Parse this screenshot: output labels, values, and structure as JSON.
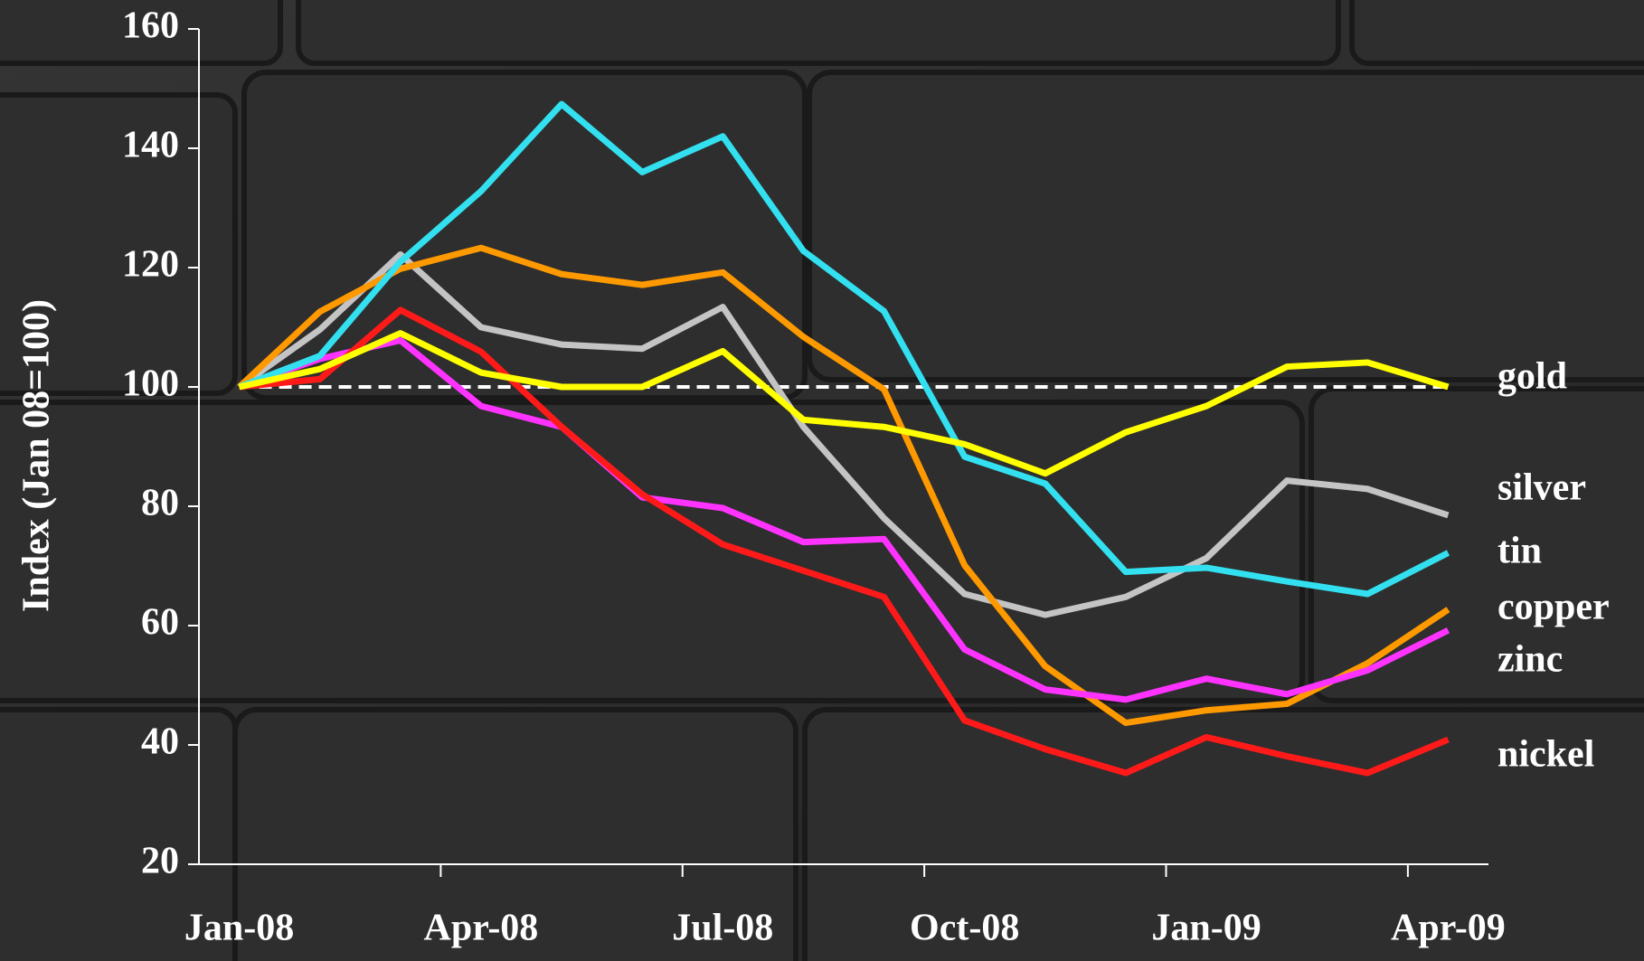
{
  "chart_data": {
    "type": "line",
    "ylabel": "Index (Jan 08=100)",
    "categories": [
      "Jan-08",
      null,
      null,
      "Apr-08",
      null,
      null,
      "Jul-08",
      null,
      null,
      "Oct-08",
      null,
      null,
      "Jan-09",
      null,
      null,
      "Apr-09"
    ],
    "ylim": [
      20,
      160
    ],
    "yticks": [
      20,
      40,
      60,
      80,
      100,
      120,
      140,
      160
    ],
    "reference_line": 100,
    "series": [
      {
        "name": "gold",
        "color": "#ffff00",
        "values": [
          100,
          103,
          109,
          102.4,
          100,
          100,
          106,
          94.5,
          93.3,
          90.4,
          85.5,
          92.4,
          96.8,
          103.4,
          104.1,
          100
        ]
      },
      {
        "name": "silver",
        "color": "#c4c4c4",
        "values": [
          100,
          109.6,
          122.2,
          110,
          107.1,
          106.4,
          113.4,
          93.3,
          78,
          65.3,
          61.8,
          64.8,
          71.3,
          84.3,
          82.9,
          78.5
        ]
      },
      {
        "name": "tin",
        "color": "#33e0f0",
        "values": [
          100,
          105.2,
          121,
          132.8,
          147.4,
          136,
          142,
          122.8,
          112.7,
          88.3,
          83.8,
          69,
          69.7,
          67.4,
          65.3,
          72.2
        ]
      },
      {
        "name": "copper",
        "color": "#ff9900",
        "values": [
          100,
          112.6,
          119.8,
          123.3,
          118.9,
          117.1,
          119.2,
          108.4,
          99.6,
          70.1,
          53.2,
          43.7,
          45.8,
          46.9,
          53.7,
          62.7
        ]
      },
      {
        "name": "zinc",
        "color": "#ff33ff",
        "values": [
          100,
          104.7,
          107.8,
          96.8,
          93.3,
          81.5,
          79.7,
          74,
          74.5,
          56,
          49.3,
          47.6,
          51.1,
          48.5,
          52.5,
          59.2
        ]
      },
      {
        "name": "nickel",
        "color": "#ff1a1a",
        "values": [
          100,
          101.3,
          112.9,
          105.9,
          93.3,
          82,
          73.6,
          69.2,
          64.8,
          44.1,
          39.3,
          35.3,
          41.3,
          38.1,
          35.3,
          40.9
        ]
      }
    ]
  }
}
